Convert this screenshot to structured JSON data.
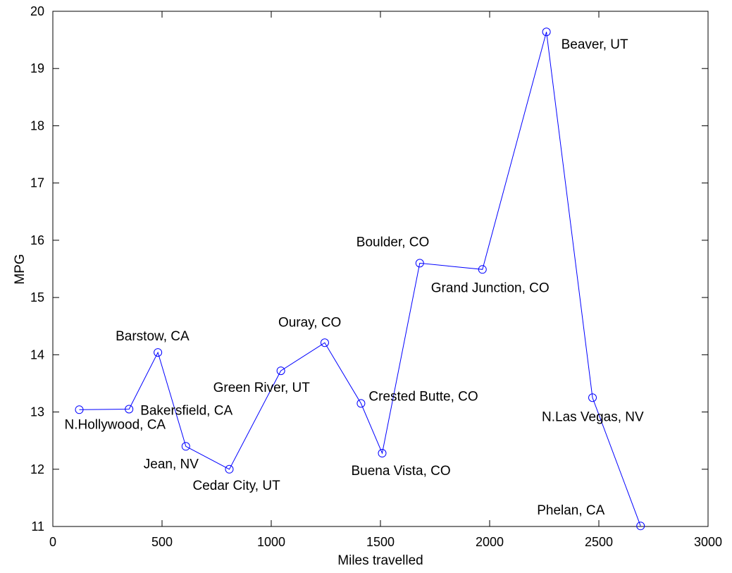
{
  "chart_data": {
    "type": "line",
    "title": "",
    "xlabel": "Miles travelled",
    "ylabel": "MPG",
    "xlim": [
      0,
      3000
    ],
    "ylim": [
      11,
      20
    ],
    "xticks": [
      "0",
      "500",
      "1000",
      "1500",
      "2000",
      "2500",
      "3000"
    ],
    "yticks": [
      "11",
      "12",
      "13",
      "14",
      "15",
      "16",
      "17",
      "18",
      "19",
      "20"
    ],
    "grid": false,
    "line_color": "#0000ff",
    "marker": "circle",
    "series": [
      {
        "points": [
          {
            "x": 121,
            "y": 13.04,
            "label": "N.Hollywood, CA"
          },
          {
            "x": 349,
            "y": 13.05,
            "label": "Bakersfield, CA"
          },
          {
            "x": 481,
            "y": 14.04,
            "label": "Barstow, CA"
          },
          {
            "x": 609,
            "y": 12.4,
            "label": "Jean, NV"
          },
          {
            "x": 808,
            "y": 12.0,
            "label": "Cedar City, UT"
          },
          {
            "x": 1044,
            "y": 13.72,
            "label": "Green River, UT"
          },
          {
            "x": 1245,
            "y": 14.21,
            "label": "Ouray, CO"
          },
          {
            "x": 1411,
            "y": 13.15,
            "label": "Crested Butte, CO"
          },
          {
            "x": 1508,
            "y": 12.28,
            "label": "Buena Vista, CO"
          },
          {
            "x": 1680,
            "y": 15.6,
            "label": "Boulder, CO"
          },
          {
            "x": 1967,
            "y": 15.49,
            "label": "Grand Junction, CO"
          },
          {
            "x": 2260,
            "y": 19.64,
            "label": "Beaver, UT"
          },
          {
            "x": 2471,
            "y": 13.25,
            "label": "N.Las Vegas, NV"
          },
          {
            "x": 2691,
            "y": 11.01,
            "label": "Phelan, CA"
          }
        ]
      }
    ]
  }
}
